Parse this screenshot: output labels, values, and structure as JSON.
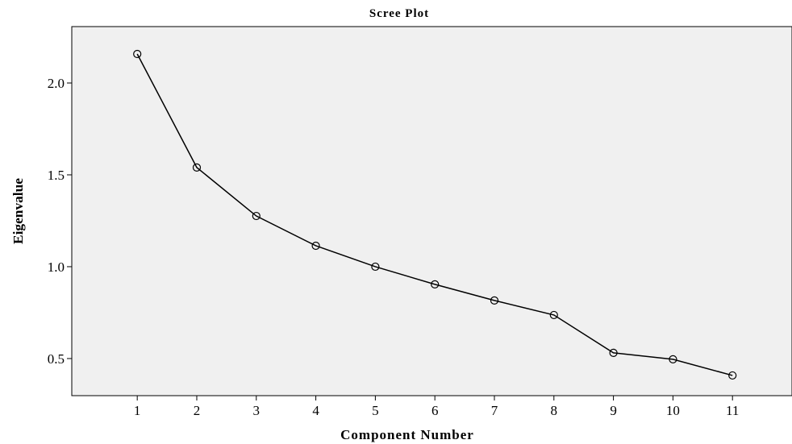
{
  "chart_data": {
    "type": "line",
    "title": "Scree Plot",
    "x_label": "Component Number",
    "y_label": "Eigenvalue",
    "x": [
      1,
      2,
      3,
      4,
      5,
      6,
      7,
      8,
      9,
      10,
      11
    ],
    "series": [
      {
        "name": "Eigenvalue",
        "color": "#000000",
        "values": [
          2.158,
          1.54,
          1.276,
          1.114,
          1.0,
          0.904,
          0.816,
          0.737,
          0.531,
          0.496,
          0.408
        ]
      }
    ],
    "xlim": [
      -0.1,
      12
    ],
    "xticks": [
      1,
      2,
      3,
      4,
      5,
      6,
      7,
      8,
      9,
      10,
      11
    ],
    "ylim": [
      0.298,
      2.307
    ],
    "yticks": [
      {
        "value": 0.5,
        "label": "0.5"
      },
      {
        "value": 1,
        "label": "1.0"
      },
      {
        "value": 1.5,
        "label": "1.5"
      },
      {
        "value": 2,
        "label": "2.0"
      }
    ],
    "background": "#f0f0f0"
  }
}
